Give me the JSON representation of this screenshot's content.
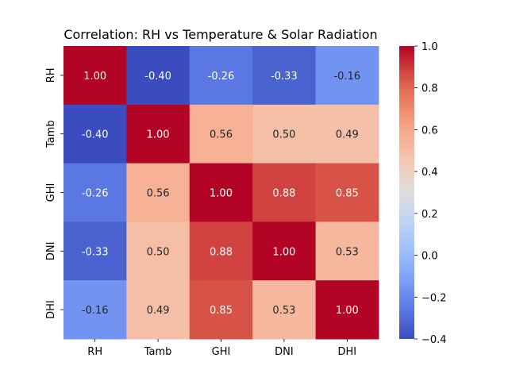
{
  "chart_data": {
    "type": "heatmap",
    "title": "Correlation: RH vs Temperature & Solar Radiation",
    "x_labels": [
      "RH",
      "Tamb",
      "GHI",
      "DNI",
      "DHI"
    ],
    "y_labels": [
      "RH",
      "Tamb",
      "GHI",
      "DNI",
      "DHI"
    ],
    "matrix": [
      [
        1.0,
        -0.4,
        -0.26,
        -0.33,
        -0.16
      ],
      [
        -0.4,
        1.0,
        0.56,
        0.5,
        0.49
      ],
      [
        -0.26,
        0.56,
        1.0,
        0.88,
        0.85
      ],
      [
        -0.33,
        0.5,
        0.88,
        1.0,
        0.53
      ],
      [
        -0.16,
        0.49,
        0.85,
        0.53,
        1.0
      ]
    ],
    "annotations": [
      [
        "1.00",
        "-0.40",
        "-0.26",
        "-0.33",
        "-0.16"
      ],
      [
        "-0.40",
        "1.00",
        "0.56",
        "0.50",
        "0.49"
      ],
      [
        "-0.26",
        "0.56",
        "1.00",
        "0.88",
        "0.85"
      ],
      [
        "-0.33",
        "0.50",
        "0.88",
        "1.00",
        "0.53"
      ],
      [
        "-0.16",
        "0.49",
        "0.85",
        "0.53",
        "1.00"
      ]
    ],
    "colormap": "coolwarm",
    "vmin": -0.4,
    "vmax": 1.0,
    "colorbar_ticks": [
      1.0,
      0.8,
      0.6,
      0.4,
      0.2,
      0.0,
      -0.2,
      -0.4
    ],
    "colorbar_tick_labels": [
      "1.0",
      "0.8",
      "0.6",
      "0.4",
      "0.2",
      "0.0",
      "−0.2",
      "−0.4"
    ],
    "colorbar_position": "right"
  }
}
